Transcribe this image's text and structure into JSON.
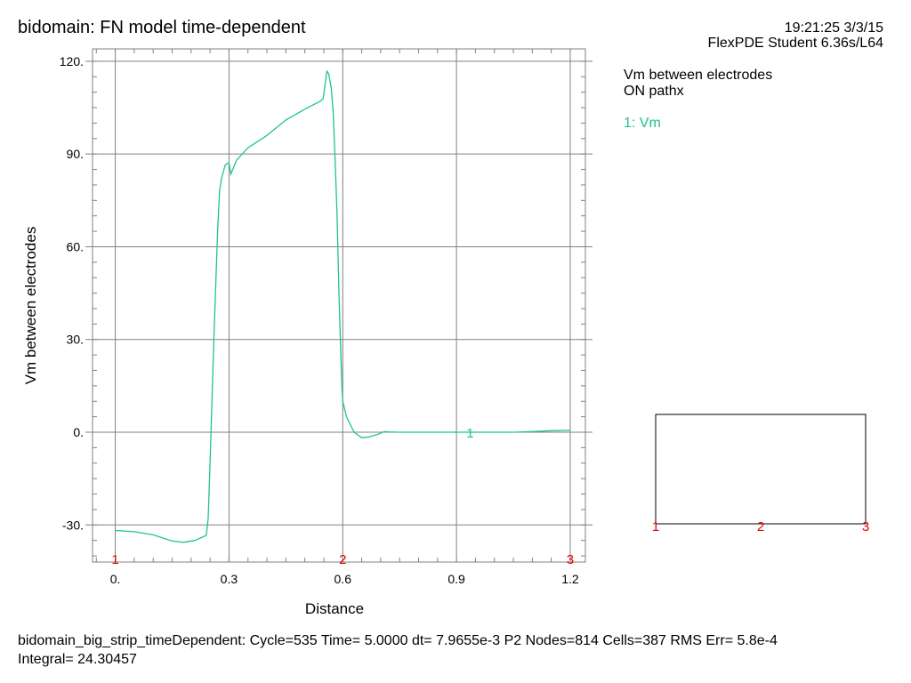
{
  "header": {
    "title": "bidomain: FN model time-dependent",
    "timestamp": "19:21:25 3/3/15",
    "software": "FlexPDE Student 6.36s/L64"
  },
  "legend": {
    "title_line1": "Vm between electrodes",
    "title_line2": "ON pathx",
    "entry": "1: Vm",
    "color": "#1ec48e"
  },
  "footer": {
    "line1": "bidomain_big_strip_timeDependent:  Cycle=535  Time= 5.0000  dt= 7.9655e-3  P2  Nodes=814 Cells=387 RMS Err= 5.8e-4",
    "line2": "Integral=  24.30457"
  },
  "colors": {
    "curve": "#1ec48e",
    "grid": "#808080",
    "marker": "#e00000",
    "frame": "#000000"
  },
  "chart_data": {
    "type": "line",
    "title": "bidomain: FN model time-dependent",
    "xlabel": "Distance",
    "ylabel": "Vm between electrodes",
    "xlim": [
      -0.06,
      1.24
    ],
    "ylim": [
      -42,
      124
    ],
    "xticks": [
      0,
      0.3,
      0.6,
      0.9,
      1.2
    ],
    "xtick_labels": [
      "0.",
      "0.3",
      "0.6",
      "0.9",
      "1.2"
    ],
    "yticks": [
      -30,
      0,
      30,
      60,
      90,
      120
    ],
    "ytick_labels": [
      "-30.",
      "0.",
      "30.",
      "60.",
      "90.",
      "120."
    ],
    "grid": true,
    "series": [
      {
        "name": "1: Vm",
        "label": "1",
        "label_at": [
          0.936,
          0
        ],
        "x": [
          0.0,
          0.05,
          0.1,
          0.15,
          0.18,
          0.21,
          0.24,
          0.245,
          0.25,
          0.26,
          0.27,
          0.275,
          0.28,
          0.29,
          0.3,
          0.305,
          0.32,
          0.35,
          0.4,
          0.45,
          0.5,
          0.52,
          0.54,
          0.548,
          0.553,
          0.558,
          0.563,
          0.57,
          0.575,
          0.58,
          0.585,
          0.59,
          0.595,
          0.598,
          0.6,
          0.61,
          0.63,
          0.65,
          0.67,
          0.69,
          0.71,
          0.72,
          0.75,
          0.85,
          0.95,
          1.05,
          1.1,
          1.15,
          1.2
        ],
        "y": [
          -31.8,
          -32.2,
          -33.2,
          -35.2,
          -35.6,
          -35.0,
          -33.4,
          -28.0,
          -10.0,
          30.0,
          65.0,
          78.0,
          82.0,
          86.5,
          87.2,
          83.5,
          88.0,
          92.0,
          96.0,
          101.0,
          104.5,
          105.8,
          107.0,
          107.8,
          112.0,
          116.8,
          116.0,
          111.0,
          103.0,
          88.0,
          70.0,
          45.0,
          25.0,
          14.0,
          10.0,
          5.0,
          0.0,
          -1.8,
          -1.5,
          -0.8,
          0.2,
          0.1,
          0.0,
          0.0,
          0.0,
          0.0,
          0.2,
          0.5,
          0.6
        ]
      }
    ],
    "path_markers": [
      {
        "label": "1",
        "x": 0.0
      },
      {
        "label": "2",
        "x": 0.6
      },
      {
        "label": "3",
        "x": 1.2
      }
    ]
  },
  "inset": {
    "markers": [
      "1",
      "2",
      "3"
    ]
  }
}
